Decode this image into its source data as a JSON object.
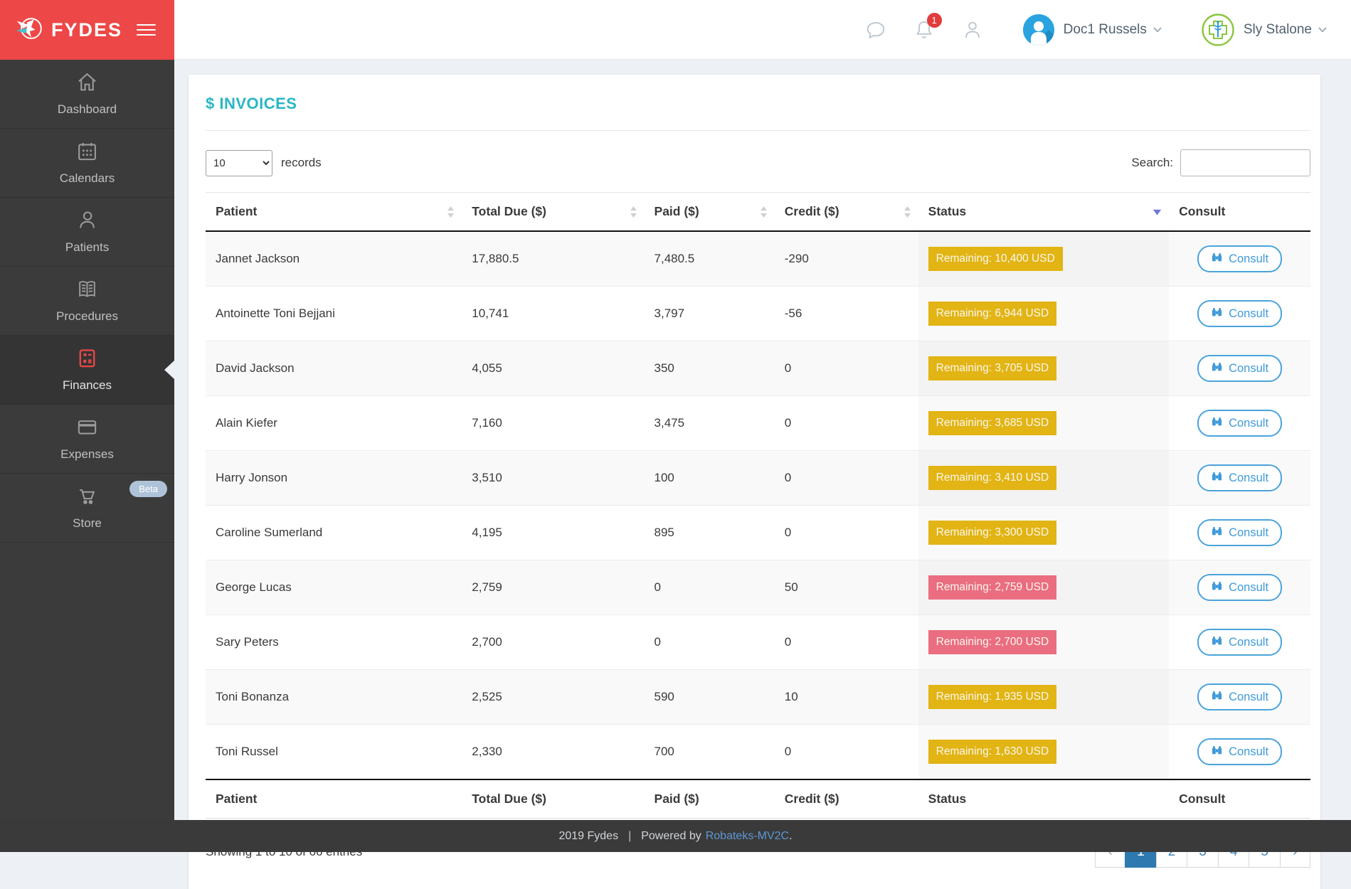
{
  "colors": {
    "brand_red": "#ed4747",
    "accent_teal": "#29b6c5",
    "badge_yellow": "#e2b414",
    "badge_red": "#ea6d80",
    "blue": "#3f9ad8",
    "page_active": "#2e79af",
    "fab": "#58cfda",
    "link": "#5e97d3"
  },
  "brand": {
    "name": "FYDES"
  },
  "header": {
    "notification_count": "1",
    "user": {
      "name": "Doc1 Russels"
    },
    "clinic": {
      "name": "Sly Stalone"
    }
  },
  "sidebar": {
    "items": [
      {
        "label": "Dashboard",
        "icon": "home",
        "active": false,
        "badge": ""
      },
      {
        "label": "Calendars",
        "icon": "calendar",
        "active": false,
        "badge": ""
      },
      {
        "label": "Patients",
        "icon": "person",
        "active": false,
        "badge": ""
      },
      {
        "label": "Procedures",
        "icon": "book",
        "active": false,
        "badge": ""
      },
      {
        "label": "Finances",
        "icon": "calculator",
        "active": true,
        "badge": ""
      },
      {
        "label": "Expenses",
        "icon": "credit-card",
        "active": false,
        "badge": ""
      },
      {
        "label": "Store",
        "icon": "cart",
        "active": false,
        "badge": "Beta"
      }
    ]
  },
  "page": {
    "title": "$ INVOICES",
    "records_value": "10",
    "records_label": "records",
    "search_label": "Search:",
    "table": {
      "columns": [
        {
          "label": "Patient",
          "sort": "both"
        },
        {
          "label": "Total Due ($)",
          "sort": "both"
        },
        {
          "label": "Paid ($)",
          "sort": "both"
        },
        {
          "label": "Credit ($)",
          "sort": "both"
        },
        {
          "label": "Status",
          "sort": "desc"
        },
        {
          "label": "Consult",
          "sort": "none"
        }
      ],
      "consult_button_label": "Consult",
      "rows": [
        {
          "patient": "Jannet Jackson",
          "total_due": "17,880.5",
          "paid": "7,480.5",
          "credit": "-290",
          "status": "Remaining: 10,400 USD",
          "status_level": "warning"
        },
        {
          "patient": "Antoinette Toni Bejjani",
          "total_due": "10,741",
          "paid": "3,797",
          "credit": "-56",
          "status": "Remaining: 6,944 USD",
          "status_level": "warning"
        },
        {
          "patient": "David Jackson",
          "total_due": "4,055",
          "paid": "350",
          "credit": "0",
          "status": "Remaining: 3,705 USD",
          "status_level": "warning"
        },
        {
          "patient": "Alain Kiefer",
          "total_due": "7,160",
          "paid": "3,475",
          "credit": "0",
          "status": "Remaining: 3,685 USD",
          "status_level": "warning"
        },
        {
          "patient": "Harry Jonson",
          "total_due": "3,510",
          "paid": "100",
          "credit": "0",
          "status": "Remaining: 3,410 USD",
          "status_level": "warning"
        },
        {
          "patient": "Caroline Sumerland",
          "total_due": "4,195",
          "paid": "895",
          "credit": "0",
          "status": "Remaining: 3,300 USD",
          "status_level": "warning"
        },
        {
          "patient": "George Lucas",
          "total_due": "2,759",
          "paid": "0",
          "credit": "50",
          "status": "Remaining: 2,759 USD",
          "status_level": "danger"
        },
        {
          "patient": "Sary Peters",
          "total_due": "2,700",
          "paid": "0",
          "credit": "0",
          "status": "Remaining: 2,700 USD",
          "status_level": "danger"
        },
        {
          "patient": "Toni Bonanza",
          "total_due": "2,525",
          "paid": "590",
          "credit": "10",
          "status": "Remaining: 1,935 USD",
          "status_level": "warning"
        },
        {
          "patient": "Toni Russel",
          "total_due": "2,330",
          "paid": "700",
          "credit": "0",
          "status": "Remaining: 1,630 USD",
          "status_level": "warning"
        }
      ]
    },
    "summary": "Showing 1 to 10 of 66 entries",
    "pagination": {
      "prev": "‹",
      "next": "›",
      "pages": [
        "1",
        "2",
        "3",
        "4",
        "5"
      ],
      "active": "1"
    }
  },
  "footer": {
    "year_text": "2019 Fydes",
    "divider": "|",
    "powered_prefix": "Powered by",
    "link_text": "Robateks-MV2C",
    "suffix": "."
  }
}
